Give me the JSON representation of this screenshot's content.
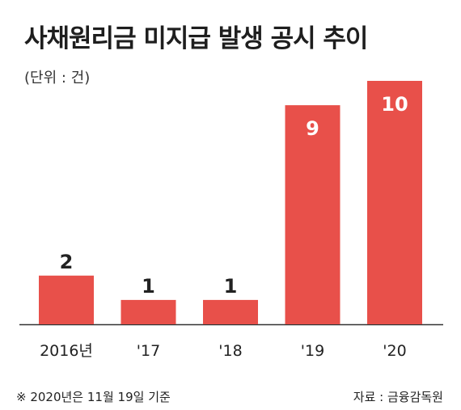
{
  "chart_data": {
    "type": "bar",
    "title": "사채원리금 미지급 발생 공시 추이",
    "unit_label": "(단위 : 건)",
    "categories": [
      "2016년",
      "'17",
      "'18",
      "'19",
      "'20"
    ],
    "values": [
      2,
      1,
      1,
      9,
      10
    ],
    "ylim": [
      0,
      10
    ],
    "grid": false,
    "bar_color": "#e8504a",
    "footnote": "※ 2020년은 11월 19일 기준",
    "source": "자료 : 금융감독원"
  }
}
